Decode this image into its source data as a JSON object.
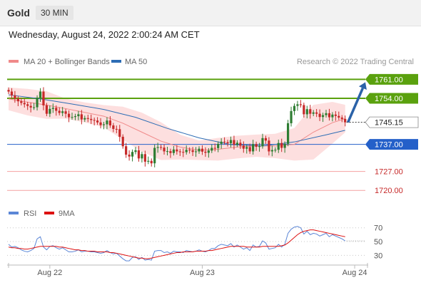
{
  "header": {
    "instrument": "Gold",
    "timeframe": "30 MIN"
  },
  "datetime": "Wednesday, August 24, 2022 2:00:24 AM CET",
  "legend": {
    "ma20": "MA 20 + Bollinger Bands",
    "ma50": "MA 50",
    "rsi": "RSI",
    "ma9": "9MA"
  },
  "credit": "Research © 2022 Trading Central",
  "colors": {
    "up": "#2e7d32",
    "down": "#c62828",
    "ma20": "#f08a8a",
    "ma50": "#2d6db5",
    "band": "#fcd4d4",
    "resistance": "#5aa10e",
    "support_blue": "#2460c9",
    "support_red": "#f4a0a0",
    "arrow": "#2b62a8",
    "rsi": "#5b86d6",
    "rsi_ma": "#dd1111"
  },
  "chart_data": [
    {
      "type": "candlestick",
      "title": "",
      "x": {
        "ticks": [
          "Aug 22",
          "Aug 23",
          "Aug 24"
        ],
        "tick_index": [
          13,
          61,
          109
        ]
      },
      "ylim": [
        1714,
        1764
      ],
      "price_levels": [
        {
          "label": "1761.00",
          "value": 1761.0,
          "kind": "resistance"
        },
        {
          "label": "1754.00",
          "value": 1754.0,
          "kind": "resistance"
        },
        {
          "label": "1745.15",
          "value": 1745.15,
          "kind": "last"
        },
        {
          "label": "1737.00",
          "value": 1737.0,
          "kind": "pivot"
        },
        {
          "label": "1727.00",
          "value": 1727.0,
          "kind": "support"
        },
        {
          "label": "1720.00",
          "value": 1720.0,
          "kind": "support"
        }
      ],
      "closes": [
        1756.5,
        1755.1,
        1753.9,
        1752.9,
        1752.3,
        1751.8,
        1751.2,
        1750.6,
        1750.7,
        1754.2,
        1756.5,
        1751.4,
        1748.3,
        1750.1,
        1750.5,
        1749.4,
        1748.6,
        1749.2,
        1748.3,
        1747.0,
        1747.1,
        1747.4,
        1748.1,
        1746.2,
        1746.7,
        1746.4,
        1746.0,
        1745.8,
        1745.1,
        1744.1,
        1744.4,
        1745.8,
        1744.0,
        1742.7,
        1742.6,
        1739.8,
        1736.3,
        1733.2,
        1732.5,
        1734.2,
        1734.8,
        1731.8,
        1733.4,
        1730.6,
        1730.9,
        1730.0,
        1735.7,
        1736.0,
        1735.8,
        1734.4,
        1734.5,
        1733.8,
        1735.1,
        1734.4,
        1734.2,
        1734.1,
        1735.0,
        1734.8,
        1734.2,
        1734.4,
        1735.4,
        1734.3,
        1733.9,
        1734.7,
        1735.7,
        1735.6,
        1737.2,
        1738.0,
        1737.8,
        1737.4,
        1738.6,
        1736.9,
        1737.6,
        1736.5,
        1735.4,
        1736.0,
        1734.4,
        1737.1,
        1736.1,
        1736.3,
        1739.3,
        1738.4,
        1734.4,
        1734.9,
        1735.0,
        1737.5,
        1735.7,
        1737.2,
        1744.8,
        1749.3,
        1751.2,
        1751.8,
        1751.5,
        1748.1,
        1750.0,
        1748.3,
        1748.8,
        1748.3,
        1747.1,
        1747.8,
        1748.5,
        1747.0,
        1748.0,
        1747.5,
        1746.9,
        1746.4,
        1745.15
      ],
      "ma20_index": [
        0,
        6,
        12,
        18,
        24,
        30,
        36,
        42,
        48,
        54,
        60,
        66,
        72,
        78,
        84,
        90,
        96,
        102,
        106
      ],
      "ma20": [
        1753.8,
        1752.6,
        1751.5,
        1750.2,
        1748.8,
        1747.4,
        1744.8,
        1741.5,
        1738.2,
        1736.0,
        1734.8,
        1735.2,
        1736.0,
        1736.5,
        1736.4,
        1737.0,
        1741.5,
        1745.0,
        1746.5
      ],
      "bb_upper": [
        1758.0,
        1757.5,
        1756.6,
        1753.9,
        1752.5,
        1751.5,
        1750.9,
        1748.7,
        1745.2,
        1740.6,
        1738.4,
        1739.4,
        1740.2,
        1740.6,
        1740.9,
        1743.0,
        1751.6,
        1752.7,
        1751.6
      ],
      "bb_lower": [
        1749.6,
        1747.7,
        1746.4,
        1746.5,
        1745.1,
        1743.3,
        1738.7,
        1734.3,
        1731.2,
        1731.4,
        1731.2,
        1731.0,
        1731.8,
        1732.4,
        1731.9,
        1731.0,
        1731.4,
        1737.3,
        1741.4
      ],
      "ma50_index": [
        0,
        10,
        20,
        30,
        40,
        50,
        60,
        70,
        80,
        90,
        100,
        106
      ],
      "ma50": [
        1755.3,
        1753.8,
        1751.9,
        1749.9,
        1747.0,
        1742.9,
        1739.4,
        1736.9,
        1736.4,
        1737.9,
        1740.5,
        1742.2
      ],
      "projection": {
        "from": 1745.15,
        "to": 1761.0
      }
    },
    {
      "type": "line",
      "title": "",
      "ylim": [
        20,
        78
      ],
      "yticks": [
        "70",
        "50",
        "30"
      ],
      "ytick_values": [
        70,
        50,
        30
      ],
      "series": [
        {
          "name": "RSI",
          "values": [
            46,
            42,
            43,
            41,
            38,
            36,
            35,
            37,
            40,
            54,
            57,
            42,
            38,
            43,
            44,
            41,
            39,
            41,
            38,
            35,
            35,
            36,
            38,
            35,
            36,
            36,
            35,
            35,
            34,
            33,
            34,
            37,
            34,
            32,
            33,
            29,
            25,
            22,
            22,
            27,
            28,
            24,
            27,
            23,
            24,
            23,
            36,
            37,
            37,
            34,
            35,
            33,
            36,
            35,
            35,
            34,
            37,
            36,
            35,
            36,
            38,
            36,
            35,
            37,
            40,
            40,
            44,
            46,
            45,
            44,
            47,
            42,
            45,
            42,
            39,
            41,
            37,
            45,
            42,
            43,
            51,
            48,
            39,
            40,
            41,
            46,
            42,
            46,
            62,
            68,
            71,
            72,
            70,
            61,
            65,
            60,
            62,
            61,
            58,
            60,
            62,
            57,
            60,
            58,
            56,
            54,
            51
          ]
        },
        {
          "name": "9MA",
          "values": [
            42,
            41,
            41,
            40,
            40,
            39,
            39,
            40,
            41,
            42,
            43,
            43,
            43,
            43,
            43,
            43,
            42,
            42,
            41,
            40,
            39,
            38,
            38,
            37,
            37,
            36,
            36,
            36,
            35,
            35,
            35,
            35,
            34,
            34,
            33,
            32,
            31,
            30,
            29,
            28,
            27,
            26,
            26,
            25,
            25,
            26,
            27,
            28,
            29,
            30,
            31,
            32,
            33,
            34,
            34,
            35,
            35,
            35,
            35,
            36,
            36,
            36,
            36,
            37,
            37,
            38,
            39,
            40,
            41,
            42,
            43,
            43,
            43,
            43,
            43,
            42,
            42,
            42,
            42,
            42,
            43,
            43,
            43,
            43,
            43,
            43,
            44,
            45,
            48,
            52,
            56,
            60,
            63,
            65,
            66,
            67,
            67,
            66,
            65,
            64,
            63,
            62,
            61,
            60,
            59,
            58,
            57
          ]
        }
      ]
    }
  ]
}
